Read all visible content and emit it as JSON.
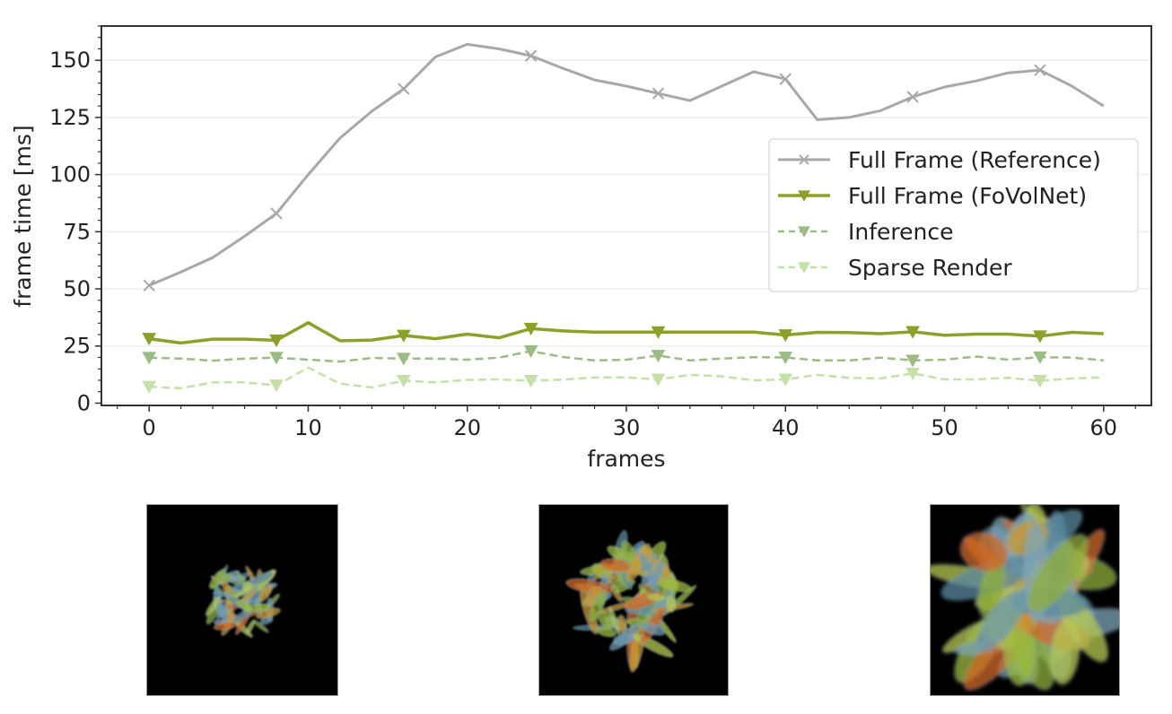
{
  "chart_data": {
    "type": "line",
    "title": "",
    "xlabel": "frames",
    "ylabel": "frame time [ms]",
    "xlim": [
      -3,
      63
    ],
    "ylim": [
      -1,
      165
    ],
    "xticks": [
      0,
      10,
      20,
      30,
      40,
      50,
      60
    ],
    "yticks": [
      0,
      25,
      50,
      75,
      100,
      125,
      150
    ],
    "x_minor_step": 2,
    "y_minor_step": 5,
    "grid": "horizontal, light",
    "legend_position": "center right",
    "x": [
      0,
      2,
      4,
      6,
      8,
      10,
      12,
      14,
      16,
      18,
      20,
      22,
      24,
      26,
      28,
      30,
      32,
      34,
      36,
      38,
      40,
      42,
      44,
      46,
      48,
      50,
      52,
      54,
      56,
      58,
      60
    ],
    "marker_every": 8,
    "series": [
      {
        "name": "Full Frame (Reference)",
        "color": "#a8a8a8",
        "style": "solid",
        "marker": "x",
        "width": 3,
        "values": [
          51.5,
          57.4,
          63.7,
          73,
          83,
          100,
          116,
          127.7,
          137.5,
          151.5,
          157,
          155,
          152,
          146.5,
          141.4,
          138.7,
          135.5,
          132.4,
          138.7,
          145,
          141.8,
          124,
          125,
          128,
          134,
          138.3,
          141,
          144.5,
          145.7,
          138.7,
          130
        ]
      },
      {
        "name": "Full Frame (FoVolNet)",
        "color": "#8aa12a",
        "style": "solid",
        "marker": "v",
        "width": 3.5,
        "values": [
          28.2,
          26.3,
          28,
          28,
          27.5,
          35.2,
          27.3,
          27.6,
          29.6,
          28.2,
          30.2,
          28.6,
          32.6,
          31.6,
          31.1,
          31.1,
          31.1,
          31.1,
          31.1,
          31.1,
          29.8,
          31,
          30.9,
          30.4,
          31.2,
          29.7,
          30.2,
          30.2,
          29.3,
          31,
          30.4
        ]
      },
      {
        "name": "Inference",
        "color": "#9dbb84",
        "style": "dashed",
        "marker": "v",
        "width": 2.5,
        "values": [
          19.9,
          19.5,
          18.6,
          19.5,
          19.9,
          19,
          18.2,
          19.8,
          19.5,
          19.5,
          19,
          19.9,
          22.8,
          20.2,
          18.7,
          19,
          20.8,
          18.7,
          19.5,
          20.1,
          20,
          18.7,
          18.7,
          19.9,
          18.7,
          19,
          20.4,
          19,
          20.1,
          19.9,
          18.7
        ]
      },
      {
        "name": "Sparse Render",
        "color": "#c5e0a8",
        "style": "dashed",
        "marker": "v",
        "width": 2.5,
        "values": [
          7.2,
          6.5,
          9.1,
          9.1,
          7.8,
          15.6,
          8.5,
          6.9,
          9.8,
          9.1,
          10.2,
          10.4,
          9.8,
          10.3,
          11.3,
          11.3,
          10.4,
          12.4,
          11.7,
          10,
          10.4,
          12.4,
          11.1,
          10.8,
          13,
          10.4,
          10.4,
          11.1,
          9.8,
          10.8,
          11.3
        ]
      }
    ]
  },
  "thumbnails": [
    {
      "label": "volume-render-frame-early",
      "density": "sparse"
    },
    {
      "label": "volume-render-frame-mid",
      "density": "medium"
    },
    {
      "label": "volume-render-frame-late",
      "density": "dense"
    }
  ]
}
